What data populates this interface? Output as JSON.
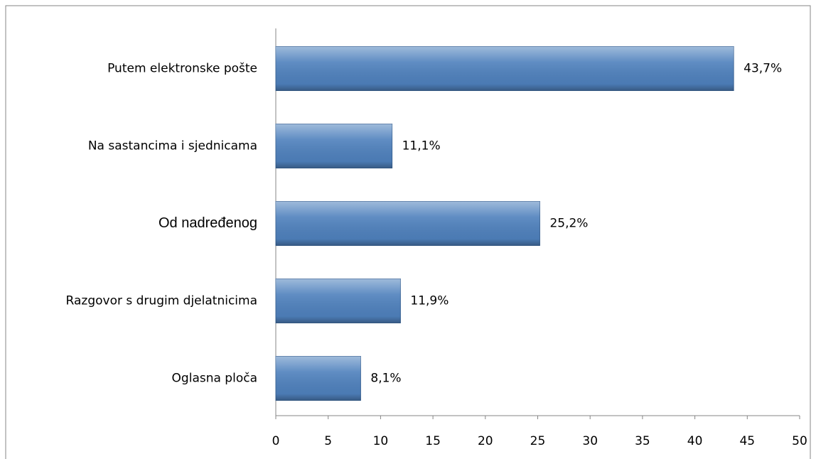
{
  "chart_data": {
    "type": "bar",
    "orientation": "horizontal",
    "categories": [
      "Putem elektronske pošte",
      "Na sastancima i sjednicama",
      "Od nadređenog",
      "Razgovor s drugim djelatnicima",
      "Oglasna ploča"
    ],
    "values": [
      43.7,
      11.1,
      25.2,
      11.9,
      8.1
    ],
    "value_labels": [
      "43,7%",
      "11,1%",
      "25,2%",
      "11,9%",
      "8,1%"
    ],
    "color": "#4f81bd",
    "xlim": [
      0,
      50
    ],
    "xticks": [
      0,
      5,
      10,
      15,
      20,
      25,
      30,
      35,
      40,
      45,
      50
    ],
    "grid": false
  }
}
